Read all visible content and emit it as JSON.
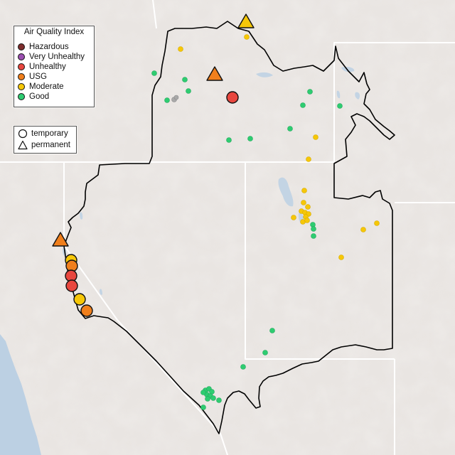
{
  "legend": {
    "title": "Air Quality Index",
    "items": [
      {
        "label": "Hazardous",
        "color": "#7e2e2e"
      },
      {
        "label": "Very Unhealthy",
        "color": "#9b4fb0"
      },
      {
        "label": "Unhealthy",
        "color": "#e8473f"
      },
      {
        "label": "USG",
        "color": "#f07f1c"
      },
      {
        "label": "Moderate",
        "color": "#f6c708"
      },
      {
        "label": "Good",
        "color": "#2ecc71"
      }
    ]
  },
  "monitor_legend": {
    "items": [
      {
        "label": "temporary",
        "shape": "circle"
      },
      {
        "label": "permanent",
        "shape": "triangle"
      }
    ]
  },
  "colors": {
    "background": "#e9e5e2",
    "water": "#bcd0e3",
    "state_border": "#ffffff",
    "region_outline": "#000000",
    "inactive_monitor": "#a9a9a9"
  },
  "icons": [
    "circle-marker-icon",
    "triangle-marker-icon"
  ]
}
